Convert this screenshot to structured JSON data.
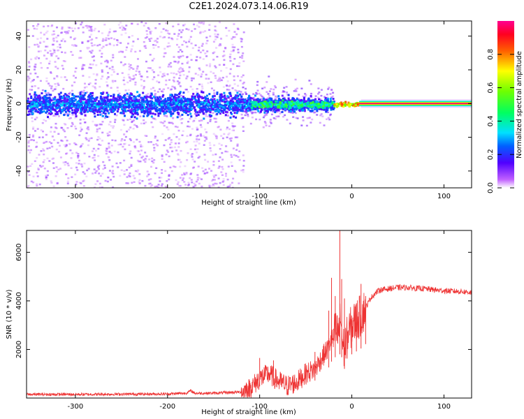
{
  "title": "C2E1.2024.073.14.06.R19",
  "chart_data": [
    {
      "type": "heatmap",
      "xlabel": "Height of straight line (km)",
      "ylabel": "Frequency (Hz)",
      "xlim": [
        -353,
        130
      ],
      "ylim": [
        -50,
        49
      ],
      "xticks": [
        -300,
        -200,
        -100,
        0,
        100
      ],
      "yticks": [
        -40,
        -20,
        0,
        20,
        40
      ],
      "grid": false,
      "colorbar": {
        "label": "Normalized spectral amplitude",
        "range": [
          0,
          1
        ],
        "ticks": [
          "0.0",
          "0.2",
          "0.4",
          "0.6",
          "0.8"
        ],
        "colormap": "rainbow (white → purple → blue → cyan → green → yellow → red → magenta)"
      },
      "regions": [
        {
          "x": [
            -353,
            -120
          ],
          "freq_spread_hz": [
            -49,
            49
          ],
          "core_band_hz": [
            -8,
            8
          ],
          "amplitude": "0.05–0.35"
        },
        {
          "x": [
            -120,
            -20
          ],
          "freq_spread_hz": [
            -22,
            22
          ],
          "core_band_hz": [
            -5,
            6
          ],
          "amplitude": "0.1–0.6"
        },
        {
          "x": [
            -20,
            10
          ],
          "freq_spread_hz": [
            -6,
            6
          ],
          "core_band_hz": [
            -2,
            2
          ],
          "amplitude": "0.5–0.9"
        },
        {
          "x": [
            10,
            130
          ],
          "freq_spread_hz": [
            -2,
            2
          ],
          "core_band_hz": [
            -1,
            1
          ],
          "amplitude": "0.85–1.0"
        }
      ]
    },
    {
      "type": "line",
      "xlabel": "Height of straight line (km)",
      "ylabel": "SNR (10 * v/v)",
      "xlim": [
        -353,
        130
      ],
      "ylim": [
        0,
        6900
      ],
      "xticks": [
        -300,
        -200,
        -100,
        0,
        100
      ],
      "yticks": [
        2000,
        4000,
        6000
      ],
      "grid": false,
      "color": "#ee3333",
      "x": [
        -353,
        -300,
        -250,
        -200,
        -180,
        -175,
        -170,
        -150,
        -120,
        -110,
        -100,
        -95,
        -90,
        -80,
        -70,
        -60,
        -50,
        -40,
        -35,
        -30,
        -25,
        -22,
        -20,
        -18,
        -15,
        -13,
        -12,
        -10,
        -8,
        -5,
        0,
        5,
        10,
        15,
        20,
        25,
        30,
        40,
        50,
        60,
        70,
        80,
        90,
        100,
        110,
        120,
        130
      ],
      "values": [
        150,
        150,
        160,
        170,
        200,
        300,
        200,
        200,
        250,
        400,
        800,
        900,
        1000,
        700,
        500,
        650,
        1000,
        1200,
        1500,
        1800,
        2100,
        2500,
        2300,
        2800,
        2600,
        3000,
        3400,
        2200,
        2000,
        2500,
        3000,
        3200,
        3400,
        3700,
        4100,
        4300,
        4450,
        4500,
        4550,
        4550,
        4520,
        4500,
        4450,
        4420,
        4400,
        4380,
        4350
      ],
      "spikes": [
        {
          "x": -100,
          "value": 1650
        },
        {
          "x": -85,
          "value": 1550
        },
        {
          "x": -40,
          "value": 1900
        },
        {
          "x": -25,
          "value": 3600
        },
        {
          "x": -22,
          "value": 4950
        },
        {
          "x": -18,
          "value": 4200
        },
        {
          "x": -13,
          "value": 6900
        },
        {
          "x": -11,
          "value": 4900
        },
        {
          "x": -8,
          "value": 4100
        },
        {
          "x": 0,
          "value": 3200
        },
        {
          "x": 5,
          "value": 3900
        },
        {
          "x": 10,
          "value": 4700
        },
        {
          "x": 15,
          "value": 4200
        }
      ]
    }
  ]
}
